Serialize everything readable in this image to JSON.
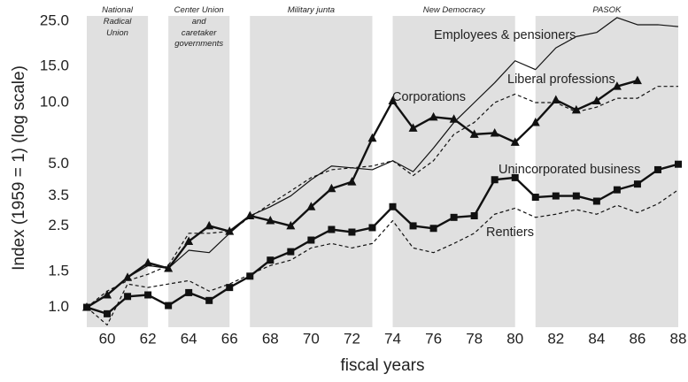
{
  "chart_data": {
    "type": "line",
    "y_label": "Index (1959 = 1) (log scale)",
    "x_label": "fiscal years",
    "log_y": true,
    "x": [
      59,
      60,
      61,
      62,
      63,
      64,
      65,
      66,
      67,
      68,
      69,
      70,
      71,
      72,
      73,
      74,
      75,
      76,
      77,
      78,
      79,
      80,
      81,
      82,
      83,
      84,
      85,
      86,
      87,
      88
    ],
    "xlim": [
      59,
      88
    ],
    "xticks": [
      60,
      62,
      64,
      66,
      68,
      70,
      72,
      74,
      76,
      78,
      80,
      82,
      84,
      86,
      88
    ],
    "ylim": [
      0.8,
      26.5
    ],
    "yticks": [
      {
        "value": 1,
        "label": "1.0"
      },
      1.5,
      2.5,
      3.5,
      {
        "value": 5,
        "label": "5.0"
      },
      {
        "value": 10,
        "label": "10.0"
      },
      {
        "value": 15,
        "label": "15.0"
      },
      {
        "value": 25,
        "label": "25.0"
      }
    ],
    "periods": [
      {
        "label": "National Radical Union",
        "start": 59,
        "end": 62
      },
      {
        "label": "Center Union and caretaker governments",
        "start": 63,
        "end": 66
      },
      {
        "label": "Military junta",
        "start": 67,
        "end": 73
      },
      {
        "label": "New Democracy",
        "start": 74,
        "end": 80
      },
      {
        "label": "PASOK",
        "start": 81,
        "end": 88
      }
    ],
    "period_color": "#e0e0e0",
    "series": [
      {
        "name": "Employees & pensioners",
        "color": "#111111",
        "style": "solid",
        "width": 1.2,
        "marker": "none",
        "values": [
          1.0,
          1.15,
          1.4,
          1.6,
          1.55,
          1.9,
          1.85,
          2.3,
          2.8,
          3.1,
          3.5,
          4.2,
          4.9,
          4.8,
          4.7,
          5.2,
          4.6,
          6.0,
          8.0,
          10,
          12.5,
          16,
          14.5,
          18.5,
          21,
          22,
          26,
          24,
          24,
          23.5
        ]
      },
      {
        "name": "Liberal professions",
        "color": "#111111",
        "style": "dashed",
        "width": 1.2,
        "marker": "none",
        "values": [
          1.0,
          1.2,
          1.35,
          1.45,
          1.6,
          2.3,
          2.3,
          2.35,
          2.75,
          3.2,
          3.7,
          4.3,
          4.7,
          4.8,
          4.9,
          5.2,
          4.4,
          5.2,
          7.0,
          8.0,
          10.0,
          11.0,
          10.0,
          10.0,
          9.0,
          9.5,
          10.5,
          10.5,
          12,
          12
        ]
      },
      {
        "name": "Corporations",
        "color": "#111111",
        "style": "solid",
        "width": 2.4,
        "marker": "triangle",
        "values": [
          1.0,
          1.15,
          1.4,
          1.65,
          1.55,
          2.1,
          2.5,
          2.35,
          2.8,
          2.65,
          2.5,
          3.1,
          3.8,
          4.1,
          6.7,
          10.2,
          7.5,
          8.5,
          8.3,
          7.0,
          7.1,
          6.4,
          8.0,
          10.3,
          9.2,
          10.2,
          12,
          12.8,
          null,
          null
        ]
      },
      {
        "name": "Unincorporated business",
        "color": "#111111",
        "style": "solid",
        "width": 2.4,
        "marker": "square",
        "values": [
          1.0,
          0.93,
          1.13,
          1.15,
          1.02,
          1.18,
          1.08,
          1.25,
          1.42,
          1.7,
          1.87,
          2.13,
          2.4,
          2.33,
          2.45,
          3.1,
          2.5,
          2.43,
          2.75,
          2.8,
          4.2,
          4.3,
          3.45,
          3.5,
          3.5,
          3.3,
          3.75,
          4.0,
          4.7,
          5.0
        ]
      },
      {
        "name": "Rentiers",
        "color": "#111111",
        "style": "dashed",
        "width": 1.2,
        "marker": "none",
        "values": [
          1.0,
          0.82,
          1.3,
          1.25,
          1.3,
          1.35,
          1.2,
          1.3,
          1.45,
          1.6,
          1.7,
          1.95,
          2.05,
          1.95,
          2.05,
          2.65,
          1.95,
          1.85,
          2.05,
          2.3,
          2.85,
          3.05,
          2.75,
          2.85,
          3.0,
          2.85,
          3.15,
          2.9,
          3.2,
          3.75
        ]
      }
    ]
  }
}
